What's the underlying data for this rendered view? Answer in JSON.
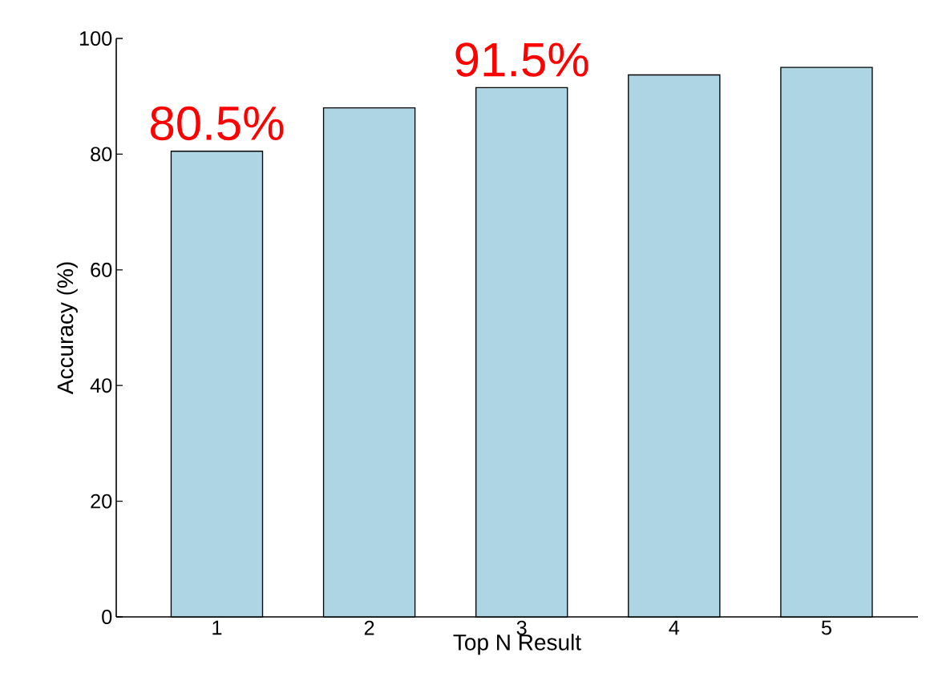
{
  "chart_data": {
    "type": "bar",
    "categories": [
      "1",
      "2",
      "3",
      "4",
      "5"
    ],
    "values": [
      80.5,
      88,
      91.5,
      93.7,
      95
    ],
    "color": "#add5e3",
    "value_labels": [
      "80.5%",
      null,
      "91.5%",
      null,
      null
    ],
    "xlabel": "Top N Result",
    "ylabel": "Accuracy (%)",
    "ylim": [
      0,
      100
    ],
    "yticks": [
      0,
      20,
      40,
      60,
      80,
      100
    ],
    "grid": false
  }
}
